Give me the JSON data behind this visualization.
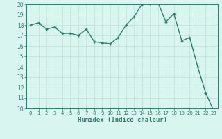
{
  "x": [
    0,
    1,
    2,
    3,
    4,
    5,
    6,
    7,
    8,
    9,
    10,
    11,
    12,
    13,
    14,
    15,
    16,
    17,
    18,
    19,
    20,
    21,
    22,
    23
  ],
  "y": [
    18.0,
    18.2,
    17.6,
    17.8,
    17.2,
    17.2,
    17.0,
    17.6,
    16.4,
    16.3,
    16.2,
    16.8,
    18.0,
    18.8,
    20.0,
    20.1,
    20.2,
    18.3,
    19.1,
    16.5,
    16.8,
    14.0,
    11.5,
    9.8
  ],
  "line_color": "#2d7d6e",
  "marker": "+",
  "marker_size": 3,
  "linewidth": 1.0,
  "xlabel": "Humidex (Indice chaleur)",
  "ylabel": "",
  "title": "",
  "xlim": [
    -0.5,
    23.5
  ],
  "ylim": [
    10,
    20
  ],
  "yticks": [
    10,
    11,
    12,
    13,
    14,
    15,
    16,
    17,
    18,
    19,
    20
  ],
  "xticks": [
    0,
    1,
    2,
    3,
    4,
    5,
    6,
    7,
    8,
    9,
    10,
    11,
    12,
    13,
    14,
    15,
    16,
    17,
    18,
    19,
    20,
    21,
    22,
    23
  ],
  "bg_color": "#d8f5f0",
  "grid_color": "#c0ddd8",
  "font_color": "#2d7d6e",
  "spine_color": "#2d7d6e"
}
